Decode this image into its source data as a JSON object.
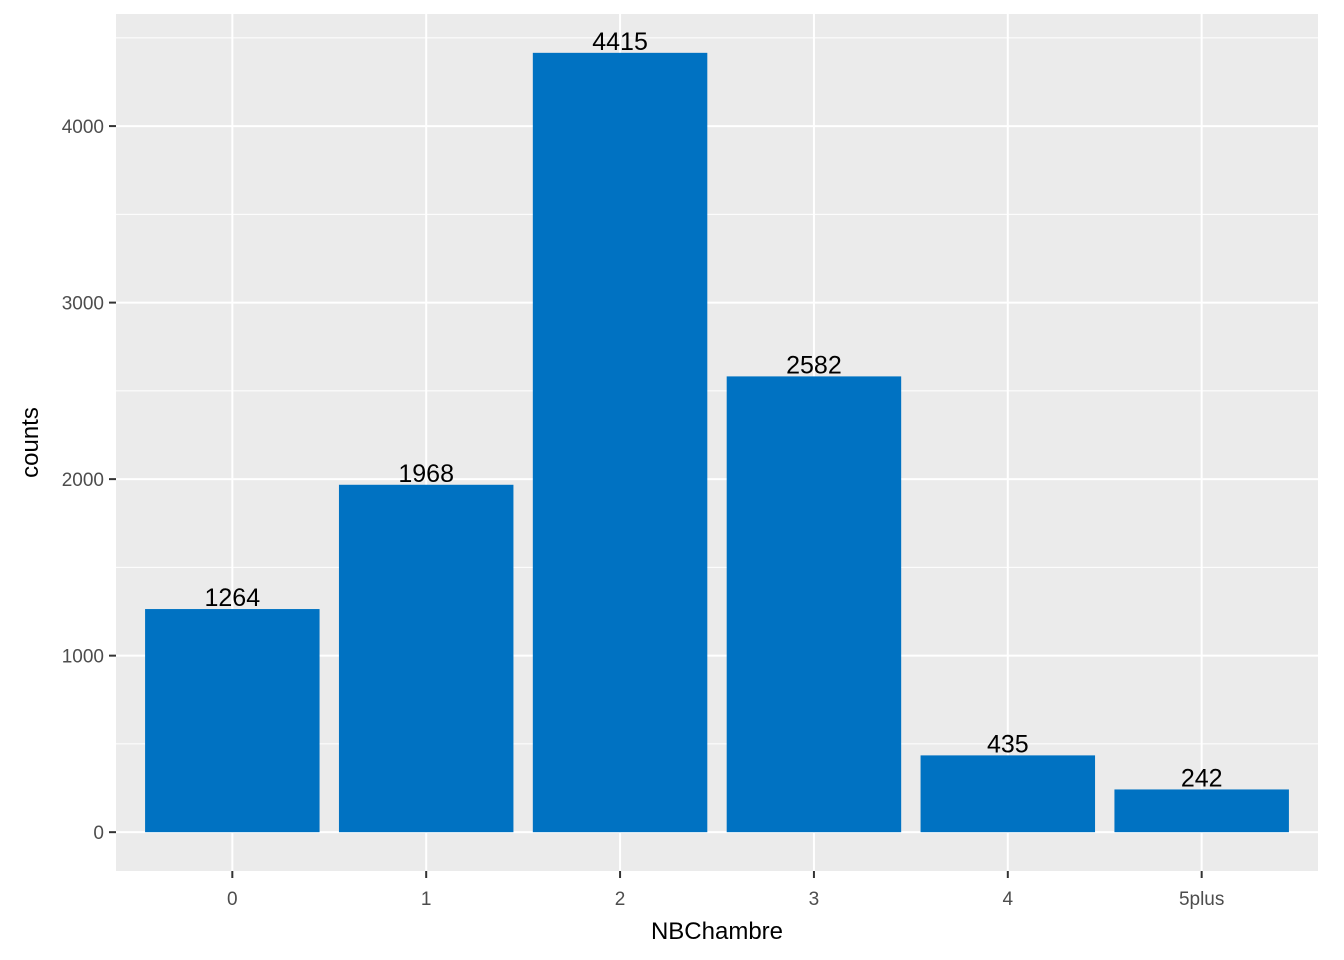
{
  "chart_data": {
    "type": "bar",
    "categories": [
      "0",
      "1",
      "2",
      "3",
      "4",
      "5plus"
    ],
    "values": [
      1264,
      1968,
      4415,
      2582,
      435,
      242
    ],
    "data_labels": [
      "1264",
      "1968",
      "4415",
      "2582",
      "435",
      "242"
    ],
    "title": "",
    "xlabel": "NBChambre",
    "ylabel": "counts",
    "ylim": [
      -220,
      4635
    ],
    "yticks": [
      0,
      1000,
      2000,
      3000,
      4000
    ],
    "ytick_labels": [
      "0",
      "1000",
      "2000",
      "3000",
      "4000"
    ],
    "grid": true,
    "legend": "none",
    "colors": {
      "bar": "#0072c2",
      "panel": "#ebebeb",
      "grid": "#ffffff",
      "tick_text": "#4d4d4d",
      "tick_mark": "#333333",
      "text": "#000000"
    }
  }
}
